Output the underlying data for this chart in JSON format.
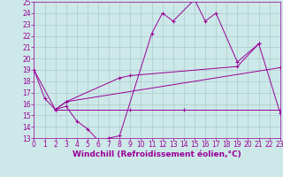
{
  "bg_color": "#cde8e8",
  "grid_color": "#aacccc",
  "line_color": "#990099",
  "xlabel": "Windchill (Refroidissement éolien,°C)",
  "ylim": [
    13,
    25
  ],
  "xlim": [
    0,
    23
  ],
  "xlabel_fontsize": 6.5,
  "tick_fontsize": 5.5,
  "line_width": 0.7,
  "marker_size": 3,
  "series": [
    {
      "x": [
        0,
        1,
        2,
        3,
        4,
        5,
        6,
        7,
        8,
        11,
        12,
        13,
        15,
        16,
        17,
        19,
        21
      ],
      "y": [
        19,
        16.5,
        15.5,
        15.8,
        14.5,
        13.8,
        12.8,
        13.0,
        13.2,
        22.2,
        24.0,
        23.3,
        25.2,
        23.3,
        24.0,
        19.7,
        21.3
      ]
    },
    {
      "x": [
        0,
        2,
        3,
        8,
        9,
        19,
        21,
        23
      ],
      "y": [
        19,
        15.5,
        16.2,
        18.3,
        18.5,
        19.3,
        21.3,
        15.2
      ]
    },
    {
      "x": [
        2,
        3,
        23
      ],
      "y": [
        15.5,
        16.2,
        19.2
      ]
    },
    {
      "x": [
        2,
        9,
        14,
        23
      ],
      "y": [
        15.5,
        15.5,
        15.5,
        15.5
      ]
    }
  ]
}
